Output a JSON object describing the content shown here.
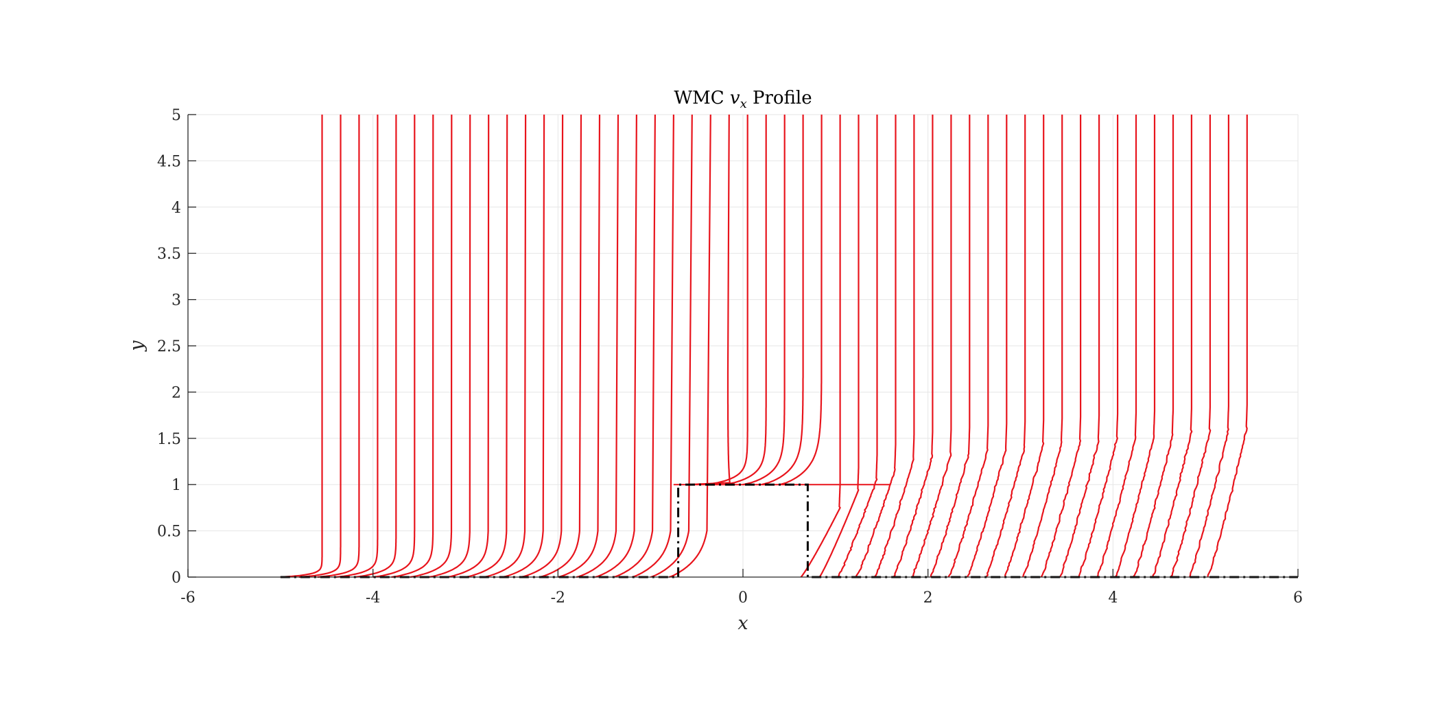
{
  "colors": {
    "profile": "#e8141c",
    "geometry": "#000000",
    "grid": "#e6e6e6",
    "axis": "#262626"
  },
  "chart_data": {
    "type": "line",
    "title": {
      "prefix": "WMC ",
      "variable": "v",
      "subscript": "x",
      "suffix": " Profile"
    },
    "xlabel": "x",
    "ylabel": "y",
    "xlim": [
      -6,
      6
    ],
    "ylim": [
      0,
      5
    ],
    "xticks": [
      -6,
      -4,
      -2,
      0,
      2,
      4,
      6
    ],
    "xtick_labels": [
      "-6",
      "-4",
      "-2",
      "0",
      "2",
      "4",
      "6"
    ],
    "yticks": [
      0,
      0.5,
      1,
      1.5,
      2,
      2.5,
      3,
      3.5,
      4,
      4.5,
      5
    ],
    "ytick_labels": [
      "0",
      "0.5",
      "1",
      "1.5",
      "2",
      "2.5",
      "3",
      "3.5",
      "4",
      "4.5",
      "5"
    ],
    "grid": true,
    "legend": "none",
    "geometry_outline": {
      "style": "dash-dot",
      "x": [
        -5.0,
        -0.7,
        -0.7,
        0.7,
        0.7,
        6.0
      ],
      "y": [
        0,
        0,
        1,
        1,
        0,
        0
      ]
    },
    "profile_stations": [
      -5.0,
      -4.8,
      -4.6,
      -4.4,
      -4.2,
      -4.0,
      -3.8,
      -3.6,
      -3.4,
      -3.2,
      -3.0,
      -2.8,
      -2.6,
      -2.4,
      -2.2,
      -2.0,
      -1.8,
      -1.6,
      -1.4,
      -1.2,
      -1.0,
      -0.8,
      -0.6,
      -0.4,
      -0.2,
      0.0,
      0.2,
      0.4,
      0.6,
      0.8,
      1.0,
      1.2,
      1.4,
      1.6,
      1.8,
      2.0,
      2.2,
      2.4,
      2.6,
      2.8,
      3.0,
      3.2,
      3.4,
      3.6,
      3.8,
      4.0,
      4.2,
      4.4,
      4.6,
      4.8,
      5.0
    ],
    "freestream_profile_x": [
      -4.5,
      -4.3,
      -4.1,
      -3.9,
      -3.7,
      -3.5,
      -3.3,
      -3.1,
      -2.9,
      -2.7,
      -2.5,
      -2.3,
      -2.1,
      -1.9,
      -1.7,
      -1.5,
      -1.3,
      -1.1,
      -0.9,
      -0.5,
      -0.3,
      0.1,
      0.3,
      0.5,
      0.7,
      0.9,
      1.1,
      1.3,
      1.7,
      1.9,
      2.1,
      2.3,
      2.5,
      2.7,
      2.9,
      3.1,
      3.3,
      3.5,
      3.7,
      3.9,
      4.1,
      4.3,
      4.5,
      4.7,
      4.9,
      5.1,
      5.3,
      5.5
    ]
  }
}
